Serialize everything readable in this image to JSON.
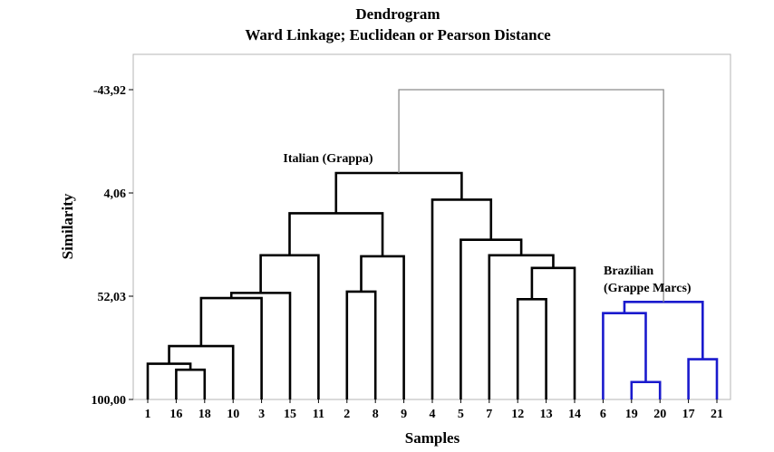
{
  "chart_data": {
    "type": "dendrogram",
    "title": "Dendrogram",
    "subtitle": "Ward Linkage; Euclidean or Pearson Distance",
    "xlabel": "Samples",
    "ylabel": "Similarity",
    "ylim": [
      100.0,
      -56.0
    ],
    "yticks": [
      "-43,92",
      "4,06",
      "52,03",
      "100,00"
    ],
    "ytick_values": [
      -43.92,
      4.06,
      52.03,
      100.0
    ],
    "leaves": [
      "1",
      "16",
      "18",
      "10",
      "3",
      "15",
      "11",
      "2",
      "8",
      "9",
      "4",
      "5",
      "7",
      "12",
      "13",
      "14",
      "6",
      "19",
      "20",
      "17",
      "21"
    ],
    "colors": {
      "italian": "#000000",
      "brazilian": "#1a1acd",
      "root": "#8c8c8c",
      "frame": "#b4b4b4"
    },
    "annotations": [
      {
        "text": "Italian (Grappa)",
        "cluster": "italian"
      },
      {
        "text": "Brazilian",
        "cluster": "brazilian"
      },
      {
        "text": "(Grappe Marcs)",
        "cluster": "brazilian"
      }
    ],
    "merges": [
      {
        "a": "16",
        "b": "18",
        "similarity": 86.2,
        "cluster": "italian"
      },
      {
        "a": "1",
        "b": "m0",
        "similarity": 83.4,
        "cluster": "italian"
      },
      {
        "a": "m1",
        "b": "10",
        "similarity": 75.2,
        "cluster": "italian"
      },
      {
        "a": "m2",
        "b": "3",
        "similarity": 52.9,
        "cluster": "italian"
      },
      {
        "a": "m3",
        "b": "15",
        "similarity": 50.5,
        "cluster": "italian"
      },
      {
        "a": "m4",
        "b": "11",
        "similarity": 33.0,
        "cluster": "italian"
      },
      {
        "a": "2",
        "b": "8",
        "similarity": 49.9,
        "cluster": "italian"
      },
      {
        "a": "m6",
        "b": "9",
        "similarity": 33.5,
        "cluster": "italian"
      },
      {
        "a": "m5",
        "b": "m7",
        "similarity": 13.5,
        "cluster": "italian"
      },
      {
        "a": "12",
        "b": "13",
        "similarity": 53.4,
        "cluster": "italian"
      },
      {
        "a": "m9",
        "b": "14",
        "similarity": 38.9,
        "cluster": "italian"
      },
      {
        "a": "7",
        "b": "m10",
        "similarity": 33.0,
        "cluster": "italian"
      },
      {
        "a": "5",
        "b": "m11",
        "similarity": 25.8,
        "cluster": "italian"
      },
      {
        "a": "4",
        "b": "m12",
        "similarity": 7.2,
        "cluster": "italian"
      },
      {
        "a": "m8",
        "b": "m13",
        "similarity": -5.2,
        "cluster": "italian"
      },
      {
        "a": "19",
        "b": "20",
        "similarity": 91.9,
        "cluster": "brazilian"
      },
      {
        "a": "6",
        "b": "m15",
        "similarity": 59.9,
        "cluster": "brazilian"
      },
      {
        "a": "17",
        "b": "21",
        "similarity": 81.3,
        "cluster": "brazilian"
      },
      {
        "a": "m16",
        "b": "m17",
        "similarity": 54.7,
        "cluster": "brazilian"
      },
      {
        "a": "m14",
        "b": "m18",
        "similarity": -43.92,
        "cluster": "root"
      }
    ]
  }
}
